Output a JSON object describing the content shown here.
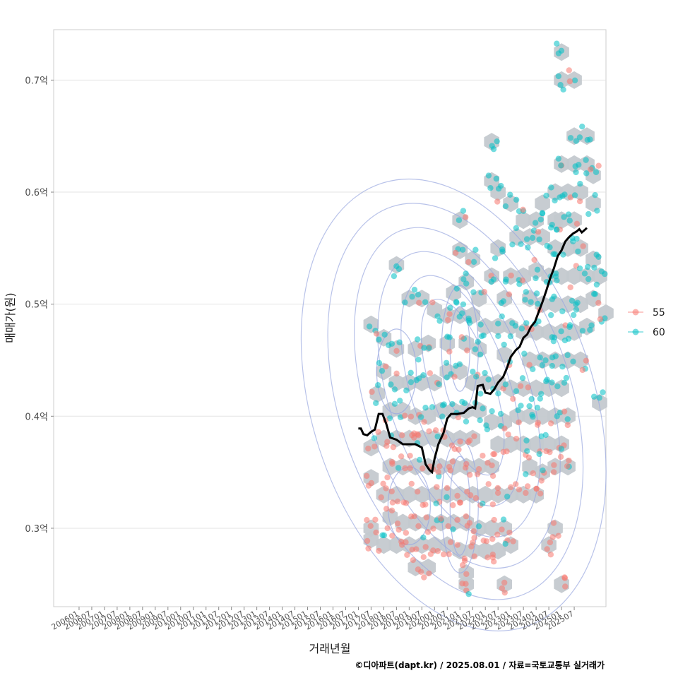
{
  "chart_data": {
    "type": "scatter",
    "title": "",
    "xlabel": "거래년월",
    "ylabel": "매매가(원)",
    "caption": "©디아파트(dapt.kr) / 2025.08.01 / 자료=국토교통부 실거래가",
    "x_tick_labels": [
      "200601",
      "200607",
      "200701",
      "200707",
      "200801",
      "200807",
      "200901",
      "200907",
      "201001",
      "201007",
      "201101",
      "201107",
      "201201",
      "201207",
      "201301",
      "201307",
      "201401",
      "201407",
      "201501",
      "201507",
      "201601",
      "201607",
      "201701",
      "201707",
      "201801",
      "201807",
      "201901",
      "201907",
      "202001",
      "202007",
      "202101",
      "202107",
      "202201",
      "202207",
      "202301",
      "202307",
      "202401",
      "202407",
      "202501",
      "202507"
    ],
    "y_ticks": [
      {
        "value": 0.3,
        "label": "0.3억"
      },
      {
        "value": 0.4,
        "label": "0.4억"
      },
      {
        "value": 0.5,
        "label": "0.5억"
      },
      {
        "value": 0.6,
        "label": "0.6억"
      },
      {
        "value": 0.7,
        "label": "0.7억"
      }
    ],
    "ylim": [
      0.23,
      0.745
    ],
    "xlim_index": [
      -2,
      41.5
    ],
    "legend": [
      {
        "name": "55",
        "color": "#F8766D"
      },
      {
        "name": "60",
        "color": "#00BFC4"
      }
    ],
    "trend_line": {
      "name": "moving average",
      "color": "#000000",
      "points": [
        [
          22.0,
          0.389
        ],
        [
          22.2,
          0.389
        ],
        [
          22.4,
          0.384
        ],
        [
          22.7,
          0.383
        ],
        [
          23.0,
          0.386
        ],
        [
          23.3,
          0.388
        ],
        [
          23.6,
          0.402
        ],
        [
          23.9,
          0.402
        ],
        [
          24.2,
          0.393
        ],
        [
          24.5,
          0.381
        ],
        [
          25.0,
          0.379
        ],
        [
          25.5,
          0.375
        ],
        [
          26.0,
          0.375
        ],
        [
          26.5,
          0.375
        ],
        [
          27.0,
          0.372
        ],
        [
          27.3,
          0.357
        ],
        [
          27.6,
          0.352
        ],
        [
          27.8,
          0.35
        ],
        [
          28.0,
          0.362
        ],
        [
          28.3,
          0.375
        ],
        [
          28.7,
          0.385
        ],
        [
          29.0,
          0.398
        ],
        [
          29.3,
          0.402
        ],
        [
          29.8,
          0.402
        ],
        [
          30.3,
          0.403
        ],
        [
          30.7,
          0.407
        ],
        [
          31.0,
          0.408
        ],
        [
          31.2,
          0.407
        ],
        [
          31.4,
          0.427
        ],
        [
          31.8,
          0.428
        ],
        [
          32.0,
          0.421
        ],
        [
          32.4,
          0.42
        ],
        [
          32.7,
          0.424
        ],
        [
          33.0,
          0.43
        ],
        [
          33.4,
          0.435
        ],
        [
          33.7,
          0.443
        ],
        [
          34.0,
          0.453
        ],
        [
          34.4,
          0.459
        ],
        [
          34.7,
          0.462
        ],
        [
          35.0,
          0.47
        ],
        [
          35.3,
          0.473
        ],
        [
          35.6,
          0.48
        ],
        [
          35.9,
          0.484
        ],
        [
          36.2,
          0.493
        ],
        [
          36.5,
          0.502
        ],
        [
          36.8,
          0.512
        ],
        [
          37.1,
          0.523
        ],
        [
          37.4,
          0.532
        ],
        [
          37.7,
          0.543
        ],
        [
          38.0,
          0.548
        ],
        [
          38.3,
          0.556
        ],
        [
          38.6,
          0.56
        ],
        [
          38.9,
          0.563
        ],
        [
          39.2,
          0.565
        ],
        [
          39.4,
          0.567
        ],
        [
          39.6,
          0.564
        ],
        [
          39.8,
          0.566
        ],
        [
          40.0,
          0.568
        ]
      ]
    },
    "hexbin_cells": [
      [
        38.0,
        0.725
      ],
      [
        38.0,
        0.7
      ],
      [
        39.0,
        0.7
      ],
      [
        39.0,
        0.65
      ],
      [
        40.0,
        0.65
      ],
      [
        39.0,
        0.625
      ],
      [
        40.0,
        0.625
      ],
      [
        38.0,
        0.625
      ],
      [
        40.5,
        0.615
      ],
      [
        38.5,
        0.6
      ],
      [
        39.5,
        0.6
      ],
      [
        37.5,
        0.6
      ],
      [
        40.5,
        0.59
      ],
      [
        36.5,
        0.59
      ],
      [
        37.5,
        0.575
      ],
      [
        39.0,
        0.575
      ],
      [
        38.0,
        0.575
      ],
      [
        36.0,
        0.575
      ],
      [
        35.0,
        0.575
      ],
      [
        30.0,
        0.575
      ],
      [
        33.0,
        0.6
      ],
      [
        34.0,
        0.59
      ],
      [
        32.5,
        0.645
      ],
      [
        32.5,
        0.61
      ],
      [
        34.5,
        0.56
      ],
      [
        35.5,
        0.56
      ],
      [
        36.5,
        0.56
      ],
      [
        37.5,
        0.55
      ],
      [
        38.5,
        0.55
      ],
      [
        39.5,
        0.55
      ],
      [
        40.5,
        0.54
      ],
      [
        30.0,
        0.548
      ],
      [
        31.0,
        0.54
      ],
      [
        33.0,
        0.55
      ],
      [
        36.0,
        0.53
      ],
      [
        37.0,
        0.525
      ],
      [
        38.0,
        0.525
      ],
      [
        39.0,
        0.525
      ],
      [
        40.0,
        0.525
      ],
      [
        41.0,
        0.525
      ],
      [
        34.0,
        0.525
      ],
      [
        35.0,
        0.525
      ],
      [
        32.5,
        0.525
      ],
      [
        30.5,
        0.52
      ],
      [
        29.5,
        0.51
      ],
      [
        25.0,
        0.535
      ],
      [
        31.5,
        0.505
      ],
      [
        33.5,
        0.505
      ],
      [
        35.5,
        0.505
      ],
      [
        36.5,
        0.5
      ],
      [
        37.5,
        0.5
      ],
      [
        38.5,
        0.5
      ],
      [
        39.5,
        0.5
      ],
      [
        40.5,
        0.505
      ],
      [
        26.0,
        0.505
      ],
      [
        27.0,
        0.505
      ],
      [
        28.0,
        0.495
      ],
      [
        29.0,
        0.49
      ],
      [
        30.0,
        0.49
      ],
      [
        31.0,
        0.49
      ],
      [
        32.0,
        0.48
      ],
      [
        33.0,
        0.48
      ],
      [
        34.0,
        0.48
      ],
      [
        35.0,
        0.475
      ],
      [
        36.0,
        0.475
      ],
      [
        37.0,
        0.475
      ],
      [
        38.0,
        0.475
      ],
      [
        39.0,
        0.475
      ],
      [
        40.0,
        0.48
      ],
      [
        41.5,
        0.492
      ],
      [
        23.0,
        0.482
      ],
      [
        24.0,
        0.47
      ],
      [
        25.0,
        0.46
      ],
      [
        26.5,
        0.46
      ],
      [
        27.5,
        0.465
      ],
      [
        29.0,
        0.465
      ],
      [
        30.5,
        0.465
      ],
      [
        31.5,
        0.46
      ],
      [
        33.5,
        0.455
      ],
      [
        35.5,
        0.45
      ],
      [
        36.5,
        0.45
      ],
      [
        37.5,
        0.45
      ],
      [
        38.5,
        0.45
      ],
      [
        39.5,
        0.45
      ],
      [
        24.0,
        0.44
      ],
      [
        25.0,
        0.43
      ],
      [
        26.0,
        0.43
      ],
      [
        27.0,
        0.43
      ],
      [
        28.0,
        0.43
      ],
      [
        29.0,
        0.44
      ],
      [
        30.0,
        0.44
      ],
      [
        31.0,
        0.43
      ],
      [
        32.0,
        0.43
      ],
      [
        33.0,
        0.43
      ],
      [
        34.0,
        0.425
      ],
      [
        35.0,
        0.425
      ],
      [
        36.0,
        0.425
      ],
      [
        37.0,
        0.425
      ],
      [
        38.0,
        0.425
      ],
      [
        23.5,
        0.42
      ],
      [
        24.5,
        0.405
      ],
      [
        25.5,
        0.405
      ],
      [
        26.5,
        0.4
      ],
      [
        27.5,
        0.4
      ],
      [
        28.5,
        0.405
      ],
      [
        29.5,
        0.405
      ],
      [
        30.5,
        0.405
      ],
      [
        31.5,
        0.405
      ],
      [
        32.5,
        0.395
      ],
      [
        33.5,
        0.395
      ],
      [
        34.5,
        0.4
      ],
      [
        35.5,
        0.4
      ],
      [
        36.5,
        0.4
      ],
      [
        37.5,
        0.4
      ],
      [
        38.5,
        0.4
      ],
      [
        41.0,
        0.412
      ],
      [
        23.0,
        0.372
      ],
      [
        24.0,
        0.38
      ],
      [
        25.0,
        0.38
      ],
      [
        26.0,
        0.38
      ],
      [
        27.0,
        0.38
      ],
      [
        28.0,
        0.38
      ],
      [
        29.0,
        0.38
      ],
      [
        30.0,
        0.38
      ],
      [
        31.0,
        0.38
      ],
      [
        33.0,
        0.375
      ],
      [
        34.0,
        0.375
      ],
      [
        35.0,
        0.375
      ],
      [
        36.0,
        0.375
      ],
      [
        37.0,
        0.375
      ],
      [
        38.0,
        0.375
      ],
      [
        24.5,
        0.355
      ],
      [
        25.5,
        0.355
      ],
      [
        26.5,
        0.355
      ],
      [
        27.5,
        0.355
      ],
      [
        28.5,
        0.355
      ],
      [
        29.5,
        0.355
      ],
      [
        30.5,
        0.355
      ],
      [
        31.5,
        0.355
      ],
      [
        32.5,
        0.355
      ],
      [
        35.5,
        0.355
      ],
      [
        36.5,
        0.35
      ],
      [
        37.5,
        0.355
      ],
      [
        38.5,
        0.355
      ],
      [
        23.0,
        0.345
      ],
      [
        24.0,
        0.33
      ],
      [
        25.0,
        0.33
      ],
      [
        26.0,
        0.33
      ],
      [
        27.0,
        0.33
      ],
      [
        28.0,
        0.33
      ],
      [
        29.0,
        0.33
      ],
      [
        30.0,
        0.33
      ],
      [
        31.0,
        0.33
      ],
      [
        32.0,
        0.33
      ],
      [
        33.0,
        0.33
      ],
      [
        34.0,
        0.33
      ],
      [
        35.0,
        0.33
      ],
      [
        36.0,
        0.33
      ],
      [
        24.5,
        0.31
      ],
      [
        25.5,
        0.305
      ],
      [
        26.5,
        0.305
      ],
      [
        27.5,
        0.305
      ],
      [
        28.5,
        0.305
      ],
      [
        29.5,
        0.305
      ],
      [
        30.5,
        0.305
      ],
      [
        31.5,
        0.3
      ],
      [
        32.5,
        0.3
      ],
      [
        33.5,
        0.3
      ],
      [
        23.0,
        0.3
      ],
      [
        37.5,
        0.3
      ],
      [
        23.0,
        0.29
      ],
      [
        24.0,
        0.285
      ],
      [
        25.0,
        0.285
      ],
      [
        26.0,
        0.285
      ],
      [
        27.0,
        0.285
      ],
      [
        28.0,
        0.285
      ],
      [
        29.0,
        0.285
      ],
      [
        30.0,
        0.28
      ],
      [
        31.0,
        0.28
      ],
      [
        32.0,
        0.28
      ],
      [
        33.0,
        0.28
      ],
      [
        34.0,
        0.285
      ],
      [
        37.0,
        0.285
      ],
      [
        26.5,
        0.265
      ],
      [
        27.5,
        0.265
      ],
      [
        30.5,
        0.26
      ],
      [
        30.5,
        0.25
      ],
      [
        33.5,
        0.25
      ],
      [
        38.0,
        0.25
      ]
    ],
    "contour_center": [
      29.5,
      0.41
    ]
  }
}
